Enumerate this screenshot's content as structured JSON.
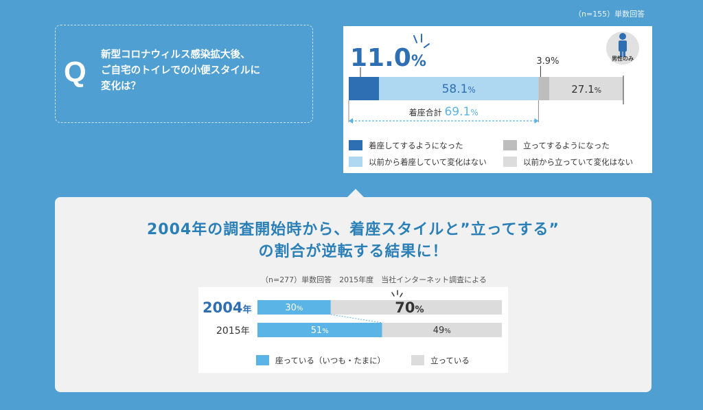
{
  "sample_note_top": "（n=155）単数回答",
  "question": {
    "letter": "Q",
    "line1": "新型コロナウィルス感染拡大後、",
    "line2": "ご自宅のトイレでの小便スタイルに",
    "line3": "変化は？"
  },
  "headline": {
    "line1": "2004年の調査開始時から、着座スタイルと”立ってする”",
    "line2": "の割合が逆転する結果に！"
  },
  "sample_note_bottom": "（n=277）単数回答　2015年度　当社インターネット調査による",
  "chart_data": [
    {
      "type": "bar",
      "orientation": "horizontal-stacked",
      "badge": "男性のみ",
      "series": [
        {
          "name": "着座してするようになった",
          "value": 11.0,
          "label": "11.0",
          "color": "#2e6fb3"
        },
        {
          "name": "以前から着座していて変化はない",
          "value": 58.1,
          "label": "58.1",
          "color": "#aed8f2"
        },
        {
          "name": "立ってするようになった",
          "value": 3.9,
          "label": "3.9%",
          "color": "#bdbdbd"
        },
        {
          "name": "以前から立っていて変化はない",
          "value": 27.1,
          "label": "27.1",
          "color": "#dcdcdc"
        }
      ],
      "unit": "%",
      "total_label": "着座合計",
      "total_value": "69.1",
      "xlim": [
        0,
        100
      ]
    },
    {
      "type": "bar",
      "orientation": "horizontal-stacked",
      "categories": [
        "2004",
        "2015"
      ],
      "category_suffix": "年",
      "series": [
        {
          "name": "座っている（いつも・たまに）",
          "values": [
            30,
            51
          ],
          "labels": [
            "30",
            "51"
          ],
          "color": "#5ab4e5"
        },
        {
          "name": "立っている",
          "values": [
            70,
            49
          ],
          "labels": [
            "70",
            "49"
          ],
          "color": "#dcdcdc"
        }
      ],
      "unit": "%",
      "xlim": [
        0,
        100
      ]
    }
  ]
}
